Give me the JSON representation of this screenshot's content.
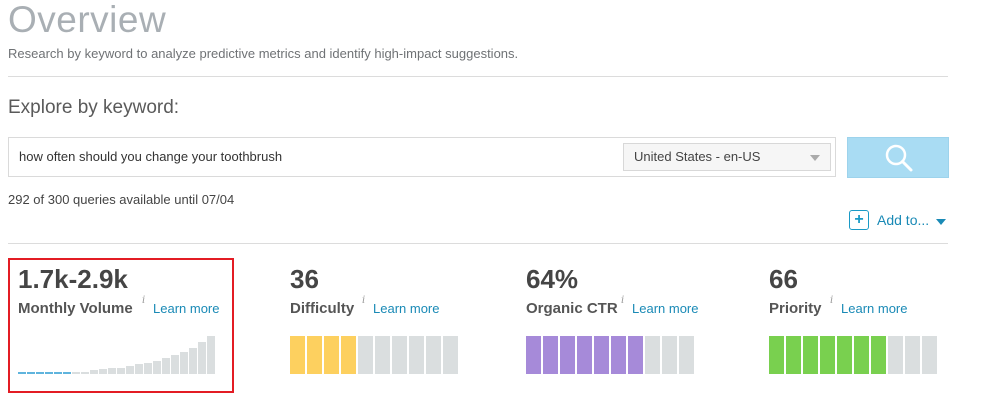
{
  "header": {
    "title": "Overview",
    "subtitle": "Research by keyword to analyze predictive metrics and identify high-impact suggestions."
  },
  "search": {
    "heading": "Explore by keyword:",
    "query": "how often should you change your toothbrush",
    "locale": "United States - en-US",
    "quota": "292 of 300 queries available until 07/04",
    "add_label": "Add to..."
  },
  "metrics": [
    {
      "id": "volume",
      "value": "1.7k-2.9k",
      "label": "Monthly Volume",
      "info": "i",
      "learn": "Learn more"
    },
    {
      "id": "difficulty",
      "value": "36",
      "label": "Difficulty",
      "info": "i",
      "learn": "Learn more",
      "fill_segments": 4,
      "total_segments": 10,
      "color": "#fdd05f"
    },
    {
      "id": "ctr",
      "value": "64%",
      "label": "Organic CTR",
      "info": "i",
      "learn": "Learn more",
      "fill_segments": 7,
      "total_segments": 10,
      "color": "#a68ad9"
    },
    {
      "id": "priority",
      "value": "66",
      "label": "Priority",
      "info": "i",
      "learn": "Learn more",
      "fill_segments": 7,
      "total_segments": 10,
      "color": "#79d04f"
    }
  ],
  "volume_bars": {
    "highlight_count": 6,
    "values": [
      1,
      1,
      1,
      1,
      1,
      1,
      3,
      3,
      5,
      6,
      7,
      8,
      10,
      12,
      14,
      17,
      20,
      24,
      28,
      33,
      40,
      48
    ]
  },
  "colors": {
    "accent": "#1a8ab6",
    "highlight": "#e31c24",
    "empty_segment": "#dadedf",
    "volume_highlight": "#5fb4dd",
    "volume_bar": "#dadedf"
  }
}
